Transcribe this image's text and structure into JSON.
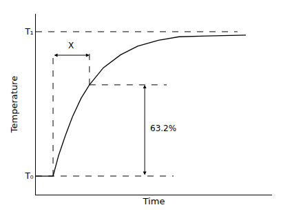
{
  "chart_data": {
    "type": "line",
    "x_label": "Time",
    "y_label": "Temperature",
    "x": [
      0,
      7.3,
      9.6,
      12.5,
      15.5,
      19.2,
      22.7,
      28.6,
      35.9,
      43.1,
      51.9,
      60.6,
      72.3,
      81.0,
      88.9
    ],
    "values": [
      0,
      0,
      14,
      28,
      41,
      54,
      63.2,
      75,
      84,
      90,
      94,
      96.5,
      97,
      97.5,
      97.6
    ],
    "color": "#000000",
    "xlim": [
      0,
      100
    ],
    "ylim": [
      -12.9,
      112.4
    ],
    "xticks": [],
    "yticks": [
      {
        "value": 0,
        "label": "T₀"
      },
      {
        "value": 100,
        "label": "T₁"
      }
    ],
    "tick_labels": "y",
    "grid": false,
    "annotations": [
      {
        "text": "X",
        "from": 7.3,
        "to": 22.7
      },
      {
        "text": "63.2%",
        "value": 63.2
      }
    ]
  }
}
